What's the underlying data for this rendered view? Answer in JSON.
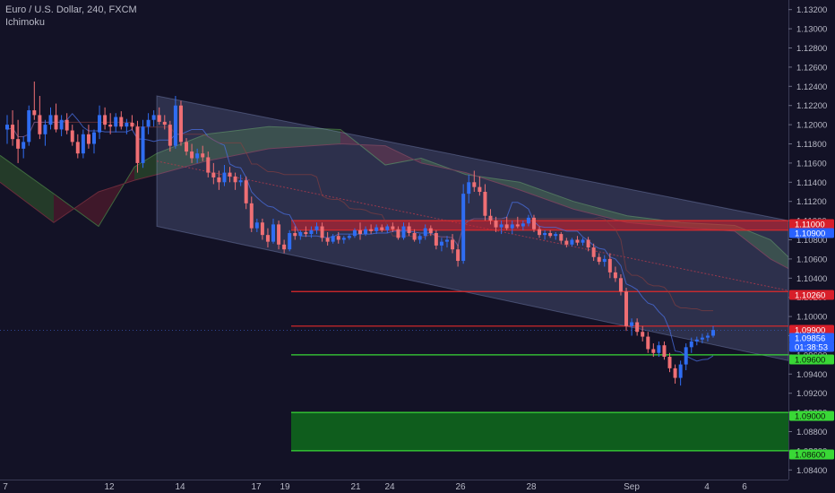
{
  "header": {
    "symbol_line": "Euro / U.S. Dollar, 240, FXCM",
    "indicator": "Ichimoku"
  },
  "colors": {
    "background": "#131226",
    "up_candle": "#2f6df2",
    "down_candle": "#ef6f74",
    "channel_fill": "#8c9ad8",
    "resistance_line": "#e12a2a",
    "support_line": "#39d836",
    "demand_zone": "#0f5d1d",
    "kumo_bull": "#2b4a2b",
    "kumo_bear": "#4f1b2c"
  },
  "chart_data": {
    "type": "candlestick",
    "x_ticks": [
      "7",
      "12",
      "14",
      "17",
      "19",
      "21",
      "24",
      "26",
      "28",
      "Sep",
      "4",
      "6"
    ],
    "y_ticks": [
      "1.13200",
      "1.13000",
      "1.12800",
      "1.12600",
      "1.12400",
      "1.12200",
      "1.12000",
      "1.11800",
      "1.11600",
      "1.11400",
      "1.11200",
      "1.11000",
      "1.10800",
      "1.10600",
      "1.10400",
      "1.10200",
      "1.10000",
      "1.09800",
      "1.09600",
      "1.09400",
      "1.09200",
      "1.09000",
      "1.08800",
      "1.08600",
      "1.08400"
    ],
    "ylim": [
      1.083,
      1.133
    ],
    "price_labels": [
      {
        "text": "1.11000",
        "kind": "resistance"
      },
      {
        "text": "1.10900",
        "kind": "line-blue"
      },
      {
        "text": "1.10260",
        "kind": "resistance"
      },
      {
        "text": "1.09900",
        "kind": "resistance"
      },
      {
        "text": "1.09856",
        "kind": "last"
      },
      {
        "text": "01:38:53",
        "kind": "countdown"
      },
      {
        "text": "1.09600",
        "kind": "support"
      },
      {
        "text": "1.09000",
        "kind": "support"
      },
      {
        "text": "1.08600",
        "kind": "support"
      }
    ],
    "levels": {
      "resistance": [
        1.11,
        1.109,
        1.1026,
        1.099
      ],
      "support": [
        1.096,
        1.09,
        1.086
      ],
      "last": 1.09856
    },
    "resistance_zone": [
      1.109,
      1.11
    ],
    "demand_zone": [
      1.086,
      1.09
    ],
    "channel": {
      "upper_start": 1.123,
      "upper_end": 1.11,
      "lower_start": 1.1094,
      "lower_end": 1.0954
    },
    "candles": [
      [
        1.1195,
        1.121,
        1.118,
        1.12
      ],
      [
        1.12,
        1.1215,
        1.1178,
        1.1185
      ],
      [
        1.1185,
        1.1205,
        1.116,
        1.1175
      ],
      [
        1.1175,
        1.1188,
        1.1165,
        1.1182
      ],
      [
        1.1182,
        1.122,
        1.1178,
        1.1215
      ],
      [
        1.1215,
        1.1245,
        1.1205,
        1.121
      ],
      [
        1.121,
        1.123,
        1.1185,
        1.119
      ],
      [
        1.119,
        1.1205,
        1.1178,
        1.12
      ],
      [
        1.12,
        1.1218,
        1.1195,
        1.121
      ],
      [
        1.121,
        1.1222,
        1.1192,
        1.1195
      ],
      [
        1.1195,
        1.121,
        1.1188,
        1.1205
      ],
      [
        1.1205,
        1.1212,
        1.119,
        1.1194
      ],
      [
        1.1194,
        1.12,
        1.1178,
        1.1182
      ],
      [
        1.1182,
        1.119,
        1.1165,
        1.117
      ],
      [
        1.117,
        1.1195,
        1.1165,
        1.119
      ],
      [
        1.119,
        1.12,
        1.1175,
        1.118
      ],
      [
        1.118,
        1.1195,
        1.117,
        1.1192
      ],
      [
        1.1192,
        1.122,
        1.1185,
        1.121
      ],
      [
        1.121,
        1.1218,
        1.1195,
        1.12
      ],
      [
        1.12,
        1.1212,
        1.119,
        1.1198
      ],
      [
        1.1198,
        1.1212,
        1.1192,
        1.1208
      ],
      [
        1.1208,
        1.1214,
        1.1195,
        1.1198
      ],
      [
        1.1198,
        1.1206,
        1.119,
        1.1202
      ],
      [
        1.1202,
        1.121,
        1.1194,
        1.1198
      ],
      [
        1.1198,
        1.1204,
        1.115,
        1.116
      ],
      [
        1.116,
        1.1205,
        1.1155,
        1.1198
      ],
      [
        1.1198,
        1.1212,
        1.119,
        1.1205
      ],
      [
        1.1205,
        1.1215,
        1.1198,
        1.121
      ],
      [
        1.121,
        1.1218,
        1.12,
        1.1203
      ],
      [
        1.1203,
        1.121,
        1.1195,
        1.12
      ],
      [
        1.12,
        1.1204,
        1.1172,
        1.1178
      ],
      [
        1.1178,
        1.123,
        1.1175,
        1.122
      ],
      [
        1.122,
        1.1225,
        1.1178,
        1.1182
      ],
      [
        1.1182,
        1.1186,
        1.1168,
        1.1172
      ],
      [
        1.1172,
        1.118,
        1.116,
        1.1165
      ],
      [
        1.1165,
        1.1175,
        1.116,
        1.117
      ],
      [
        1.117,
        1.1178,
        1.1162,
        1.1166
      ],
      [
        1.1166,
        1.1172,
        1.1145,
        1.115
      ],
      [
        1.115,
        1.116,
        1.1138,
        1.1145
      ],
      [
        1.1145,
        1.1152,
        1.1132,
        1.114
      ],
      [
        1.114,
        1.1158,
        1.1136,
        1.115
      ],
      [
        1.115,
        1.1156,
        1.114,
        1.1146
      ],
      [
        1.1146,
        1.115,
        1.1132,
        1.114
      ],
      [
        1.114,
        1.1148,
        1.1136,
        1.1142
      ],
      [
        1.1142,
        1.1146,
        1.1112,
        1.1118
      ],
      [
        1.1118,
        1.1125,
        1.1088,
        1.1092
      ],
      [
        1.1092,
        1.1102,
        1.1088,
        1.1098
      ],
      [
        1.1098,
        1.1102,
        1.108,
        1.1085
      ],
      [
        1.1085,
        1.1092,
        1.1072,
        1.1078
      ],
      [
        1.1078,
        1.1102,
        1.1076,
        1.1096
      ],
      [
        1.1096,
        1.11,
        1.107,
        1.1075
      ],
      [
        1.1075,
        1.108,
        1.1066,
        1.107
      ],
      [
        1.107,
        1.109,
        1.1068,
        1.1087
      ],
      [
        1.1087,
        1.1094,
        1.108,
        1.1084
      ],
      [
        1.1084,
        1.109,
        1.108,
        1.1088
      ],
      [
        1.1088,
        1.1094,
        1.1083,
        1.1086
      ],
      [
        1.1086,
        1.1094,
        1.1082,
        1.109
      ],
      [
        1.109,
        1.1098,
        1.1086,
        1.1094
      ],
      [
        1.1094,
        1.1098,
        1.1078,
        1.1082
      ],
      [
        1.1082,
        1.1088,
        1.1074,
        1.1078
      ],
      [
        1.1078,
        1.1086,
        1.1076,
        1.1084
      ],
      [
        1.1084,
        1.1088,
        1.1076,
        1.108
      ],
      [
        1.108,
        1.1084,
        1.1076,
        1.1082
      ],
      [
        1.1082,
        1.1086,
        1.108,
        1.1084
      ],
      [
        1.1084,
        1.1092,
        1.1082,
        1.109
      ],
      [
        1.109,
        1.1098,
        1.108,
        1.1086
      ],
      [
        1.1086,
        1.1094,
        1.1084,
        1.1091
      ],
      [
        1.1091,
        1.1096,
        1.1086,
        1.1089
      ],
      [
        1.1089,
        1.1096,
        1.1086,
        1.1093
      ],
      [
        1.1093,
        1.1096,
        1.1088,
        1.109
      ],
      [
        1.109,
        1.1096,
        1.1087,
        1.1094
      ],
      [
        1.1094,
        1.1098,
        1.1088,
        1.1091
      ],
      [
        1.1091,
        1.1094,
        1.108,
        1.1082
      ],
      [
        1.1082,
        1.1098,
        1.108,
        1.1094
      ],
      [
        1.1094,
        1.1098,
        1.1084,
        1.1087
      ],
      [
        1.1087,
        1.1091,
        1.1078,
        1.108
      ],
      [
        1.108,
        1.1086,
        1.1076,
        1.1084
      ],
      [
        1.1084,
        1.1096,
        1.108,
        1.1092
      ],
      [
        1.1092,
        1.1095,
        1.1084,
        1.1087
      ],
      [
        1.1087,
        1.109,
        1.107,
        1.1074
      ],
      [
        1.1074,
        1.1082,
        1.1068,
        1.1078
      ],
      [
        1.1078,
        1.1084,
        1.1072,
        1.108
      ],
      [
        1.108,
        1.1086,
        1.1066,
        1.107
      ],
      [
        1.107,
        1.1075,
        1.1052,
        1.1058
      ],
      [
        1.1058,
        1.1138,
        1.1055,
        1.1128
      ],
      [
        1.1128,
        1.1148,
        1.1118,
        1.114
      ],
      [
        1.114,
        1.1152,
        1.113,
        1.1135
      ],
      [
        1.1135,
        1.1146,
        1.1126,
        1.113
      ],
      [
        1.113,
        1.1138,
        1.11,
        1.1105
      ],
      [
        1.1105,
        1.1112,
        1.1096,
        1.11
      ],
      [
        1.11,
        1.1104,
        1.1088,
        1.1093
      ],
      [
        1.1093,
        1.11,
        1.1086,
        1.1096
      ],
      [
        1.1096,
        1.1104,
        1.109,
        1.1092
      ],
      [
        1.1092,
        1.11,
        1.1086,
        1.1096
      ],
      [
        1.1096,
        1.1104,
        1.1092,
        1.1094
      ],
      [
        1.1094,
        1.11,
        1.109,
        1.1097
      ],
      [
        1.1097,
        1.1106,
        1.1094,
        1.1103
      ],
      [
        1.1103,
        1.1106,
        1.1088,
        1.1091
      ],
      [
        1.1091,
        1.1094,
        1.1082,
        1.1085
      ],
      [
        1.1085,
        1.109,
        1.108,
        1.1087
      ],
      [
        1.1087,
        1.109,
        1.1082,
        1.1084
      ],
      [
        1.1084,
        1.1088,
        1.108,
        1.1086
      ],
      [
        1.1086,
        1.1088,
        1.1076,
        1.1079
      ],
      [
        1.1079,
        1.1082,
        1.1072,
        1.1075
      ],
      [
        1.1075,
        1.1082,
        1.1073,
        1.108
      ],
      [
        1.108,
        1.1084,
        1.1074,
        1.1077
      ],
      [
        1.1077,
        1.1082,
        1.1074,
        1.108
      ],
      [
        1.108,
        1.1083,
        1.1068,
        1.1072
      ],
      [
        1.1072,
        1.1076,
        1.1058,
        1.1062
      ],
      [
        1.1062,
        1.1066,
        1.1054,
        1.1057
      ],
      [
        1.1057,
        1.1064,
        1.1052,
        1.106
      ],
      [
        1.106,
        1.1066,
        1.104,
        1.1046
      ],
      [
        1.1046,
        1.1052,
        1.1036,
        1.104
      ],
      [
        1.104,
        1.1044,
        1.1022,
        1.1026
      ],
      [
        1.1026,
        1.103,
        1.0985,
        1.099
      ],
      [
        1.099,
        1.0998,
        1.098,
        1.0994
      ],
      [
        1.0994,
        1.0998,
        1.098,
        1.0984
      ],
      [
        1.0984,
        1.099,
        1.0974,
        1.0979
      ],
      [
        1.0979,
        1.0984,
        1.0962,
        1.0966
      ],
      [
        1.0966,
        1.0972,
        1.0958,
        1.0962
      ],
      [
        1.0962,
        1.0974,
        1.0958,
        1.097
      ],
      [
        1.097,
        1.0974,
        1.0955,
        1.0958
      ],
      [
        1.0958,
        1.0962,
        1.0942,
        1.0946
      ],
      [
        1.0946,
        1.095,
        1.093,
        1.0936
      ],
      [
        1.0936,
        1.0954,
        1.0928,
        1.095
      ],
      [
        1.095,
        1.0972,
        1.0944,
        1.0968
      ],
      [
        1.0968,
        1.0978,
        1.0962,
        1.0974
      ],
      [
        1.0974,
        1.0979,
        1.097,
        1.0976
      ],
      [
        1.0976,
        1.0982,
        1.0972,
        1.0978
      ],
      [
        1.0978,
        1.0983,
        1.0974,
        1.098
      ],
      [
        1.098,
        1.099,
        1.0978,
        1.0986
      ]
    ]
  }
}
